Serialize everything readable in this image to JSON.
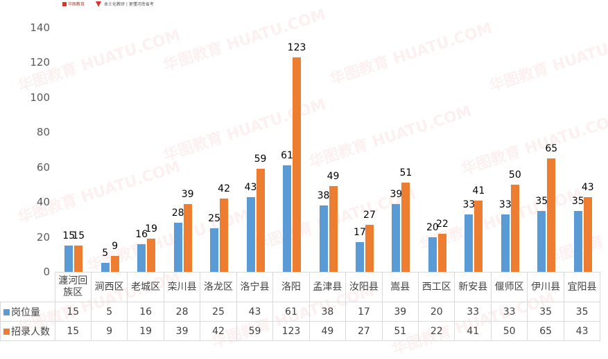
{
  "header": {
    "logo_text": "华图教育",
    "slogan": "本土化教研 | 更懂河南省考"
  },
  "watermark": "华图教育 HUATU.COM",
  "colors": {
    "series1": "#5b9bd5",
    "series2": "#ed7d31",
    "grid": "#d9d9d9",
    "text": "#404040"
  },
  "yaxis": {
    "ticks": [
      "140",
      "120",
      "100",
      "80",
      "60",
      "40",
      "20",
      "0"
    ]
  },
  "legend": {
    "series1": "岗位量",
    "series2": "招录人数"
  },
  "chart_data": {
    "type": "bar",
    "title": "",
    "xlabel": "",
    "ylabel": "",
    "ylim": [
      0,
      140
    ],
    "yticks": [
      0,
      20,
      40,
      60,
      80,
      100,
      120,
      140
    ],
    "grid": false,
    "legend_position": "data-table-left",
    "categories": [
      "瀍河回族区",
      "涧西区",
      "老城区",
      "栾川县",
      "洛龙区",
      "洛宁县",
      "洛阳",
      "孟津县",
      "汝阳县",
      "嵩县",
      "西工区",
      "新安县",
      "偃师区",
      "伊川县",
      "宜阳县"
    ],
    "category_labels": [
      "瀍河回\n族区",
      "涧西区",
      "老城区",
      "栾川县",
      "洛龙区",
      "洛宁县",
      "洛阳",
      "孟津县",
      "汝阳县",
      "嵩县",
      "西工区",
      "新安县",
      "偃师区",
      "伊川县",
      "宜阳县"
    ],
    "series": [
      {
        "name": "岗位量",
        "color": "#5b9bd5",
        "values": [
          15,
          5,
          16,
          28,
          25,
          43,
          61,
          38,
          17,
          39,
          20,
          33,
          33,
          35,
          35
        ]
      },
      {
        "name": "招录人数",
        "color": "#ed7d31",
        "values": [
          15,
          9,
          19,
          39,
          42,
          59,
          123,
          49,
          27,
          51,
          22,
          41,
          50,
          65,
          43
        ]
      }
    ],
    "data_labels": true,
    "data_table": true
  }
}
